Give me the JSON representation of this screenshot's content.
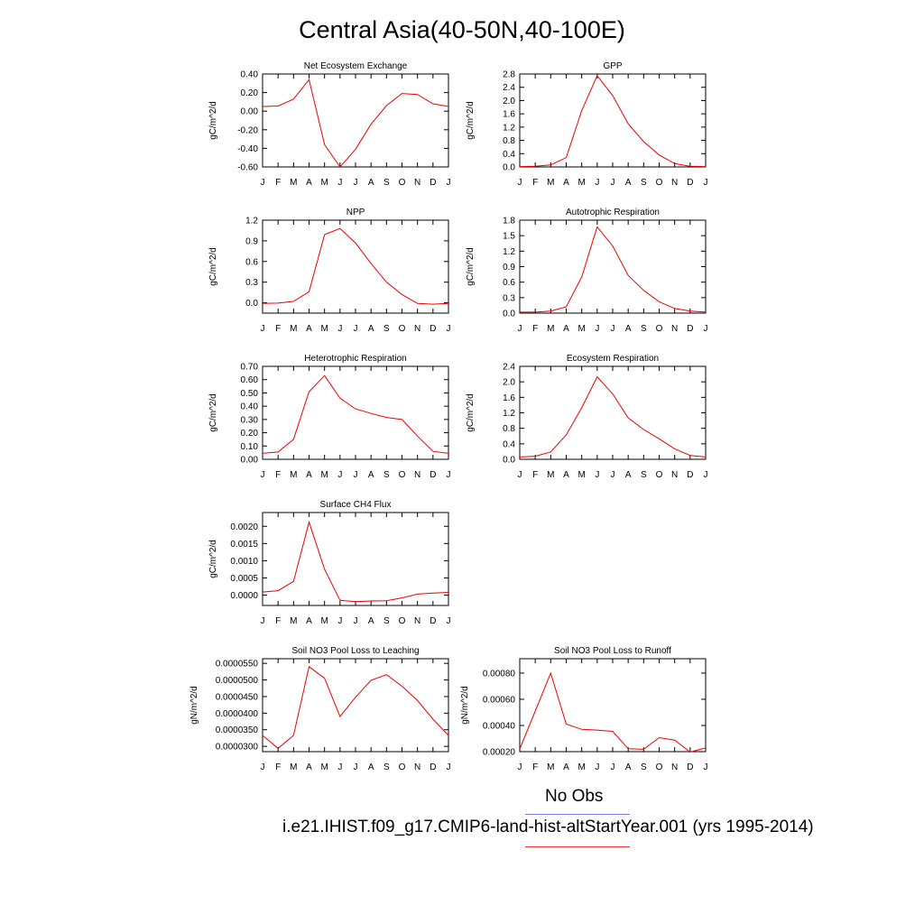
{
  "title": "Central Asia(40-50N,40-100E)",
  "legend": {
    "entries": [
      {
        "label": "No Obs",
        "color": "#7b7bea"
      },
      {
        "label": "i.e21.IHIST.f09_g17.CMIP6-land-hist-altStartYear.001 (yrs 1995-2014)",
        "color": "#ee3333"
      }
    ]
  },
  "chart_data": [
    {
      "type": "line",
      "title": "Net Ecosystem Exchange",
      "ylabel": "gC/m^2/d",
      "categories": [
        "J",
        "F",
        "M",
        "A",
        "M",
        "J",
        "J",
        "A",
        "S",
        "O",
        "N",
        "D",
        "J"
      ],
      "ylim": [
        -0.6,
        0.4
      ],
      "yticks": [
        0.4,
        0.2,
        0.0,
        -0.2,
        -0.4,
        -0.6
      ],
      "ytick_labels": [
        "0.40",
        "0.20",
        "0.00",
        "-0.20",
        "-0.40",
        "-0.60"
      ],
      "series": [
        {
          "color": "#ee0000",
          "values": [
            0.05,
            0.055,
            0.13,
            0.34,
            -0.36,
            -0.6,
            -0.41,
            -0.14,
            0.06,
            0.19,
            0.18,
            0.08,
            0.05
          ]
        }
      ]
    },
    {
      "type": "line",
      "title": "GPP",
      "ylabel": "gC/m^2/d",
      "categories": [
        "J",
        "F",
        "M",
        "A",
        "M",
        "J",
        "J",
        "A",
        "S",
        "O",
        "N",
        "D",
        "J"
      ],
      "ylim": [
        0.0,
        2.8
      ],
      "yticks": [
        2.8,
        2.4,
        2.0,
        1.6,
        1.2,
        0.8,
        0.4,
        0.0
      ],
      "ytick_labels": [
        "2.8",
        "2.4",
        "2.0",
        "1.6",
        "1.2",
        "0.8",
        "0.4",
        "0.0"
      ],
      "series": [
        {
          "color": "#ee0000",
          "values": [
            0.01,
            0.02,
            0.06,
            0.28,
            1.7,
            2.75,
            2.15,
            1.3,
            0.76,
            0.36,
            0.1,
            0.02,
            0.01
          ]
        }
      ]
    },
    {
      "type": "line",
      "title": "NPP",
      "ylabel": "gC/m^2/d",
      "categories": [
        "J",
        "F",
        "M",
        "A",
        "M",
        "J",
        "J",
        "A",
        "S",
        "O",
        "N",
        "D",
        "J"
      ],
      "ylim": [
        -0.15,
        1.2
      ],
      "yticks": [
        1.2,
        0.9,
        0.6,
        0.3,
        0.0
      ],
      "ytick_labels": [
        "1.2",
        "0.9",
        "0.6",
        "0.3",
        "0.0"
      ],
      "series": [
        {
          "color": "#ee0000",
          "values": [
            -0.01,
            -0.005,
            0.02,
            0.16,
            0.99,
            1.08,
            0.87,
            0.57,
            0.3,
            0.12,
            -0.01,
            -0.02,
            -0.01
          ]
        }
      ]
    },
    {
      "type": "line",
      "title": "Autotrophic Respiration",
      "ylabel": "gC/m^2/d",
      "categories": [
        "J",
        "F",
        "M",
        "A",
        "M",
        "J",
        "J",
        "A",
        "S",
        "O",
        "N",
        "D",
        "J"
      ],
      "ylim": [
        0.0,
        1.8
      ],
      "yticks": [
        1.8,
        1.5,
        1.2,
        0.9,
        0.6,
        0.3,
        0.0
      ],
      "ytick_labels": [
        "1.8",
        "1.5",
        "1.2",
        "0.9",
        "0.6",
        "0.3",
        "0.0"
      ],
      "series": [
        {
          "color": "#ee0000",
          "values": [
            0.02,
            0.02,
            0.04,
            0.12,
            0.7,
            1.67,
            1.3,
            0.73,
            0.44,
            0.22,
            0.09,
            0.04,
            0.02
          ]
        }
      ]
    },
    {
      "type": "line",
      "title": "Heterotrophic Respiration",
      "ylabel": "gC/m^2/d",
      "categories": [
        "J",
        "F",
        "M",
        "A",
        "M",
        "J",
        "J",
        "A",
        "S",
        "O",
        "N",
        "D",
        "J"
      ],
      "ylim": [
        0.0,
        0.7
      ],
      "yticks": [
        0.7,
        0.6,
        0.5,
        0.4,
        0.3,
        0.2,
        0.1,
        0.0
      ],
      "ytick_labels": [
        "0.70",
        "0.60",
        "0.50",
        "0.40",
        "0.30",
        "0.20",
        "0.10",
        "0.00"
      ],
      "series": [
        {
          "color": "#ee0000",
          "values": [
            0.045,
            0.055,
            0.15,
            0.51,
            0.63,
            0.46,
            0.38,
            0.345,
            0.315,
            0.3,
            0.175,
            0.06,
            0.045
          ]
        }
      ]
    },
    {
      "type": "line",
      "title": "Ecosystem Respiration",
      "ylabel": "gC/m^2/d",
      "categories": [
        "J",
        "F",
        "M",
        "A",
        "M",
        "J",
        "J",
        "A",
        "S",
        "O",
        "N",
        "D",
        "J"
      ],
      "ylim": [
        0.0,
        2.4
      ],
      "yticks": [
        2.4,
        2.0,
        1.6,
        1.2,
        0.8,
        0.4,
        0.0
      ],
      "ytick_labels": [
        "2.4",
        "2.0",
        "1.6",
        "1.2",
        "0.8",
        "0.4",
        "0.0"
      ],
      "series": [
        {
          "color": "#ee0000",
          "values": [
            0.06,
            0.08,
            0.19,
            0.63,
            1.33,
            2.13,
            1.69,
            1.07,
            0.77,
            0.53,
            0.27,
            0.1,
            0.06
          ]
        }
      ]
    },
    {
      "type": "line",
      "title": "Surface CH4 Flux",
      "ylabel": "gC/m^2/d",
      "categories": [
        "J",
        "F",
        "M",
        "A",
        "M",
        "J",
        "J",
        "A",
        "S",
        "O",
        "N",
        "D",
        "J"
      ],
      "ylim": [
        -0.0003,
        0.0024
      ],
      "yticks": [
        0.002,
        0.0015,
        0.001,
        0.0005,
        0.0
      ],
      "ytick_labels": [
        "0.0020",
        "0.0015",
        "0.0010",
        "0.0005",
        "0.0000"
      ],
      "series": [
        {
          "color": "#ee0000",
          "values": [
            9e-05,
            0.00013,
            0.0004,
            0.00212,
            0.00075,
            -0.00015,
            -0.00019,
            -0.00017,
            -0.00016,
            -8e-05,
            3e-05,
            6e-05,
            8e-05
          ]
        }
      ]
    },
    {
      "type": "line",
      "title": "Soil NO3 Pool Loss to Leaching",
      "ylabel": "gN/m^2/d",
      "categories": [
        "J",
        "F",
        "M",
        "A",
        "M",
        "J",
        "J",
        "A",
        "S",
        "O",
        "N",
        "D",
        "J"
      ],
      "ylim": [
        2.84e-05,
        5.64e-05
      ],
      "yticks": [
        5.5e-05,
        5e-05,
        4.5e-05,
        4e-05,
        3.5e-05,
        3e-05
      ],
      "ytick_labels": [
        "0.0000550",
        "0.0000500",
        "0.0000450",
        "0.0000400",
        "0.0000350",
        "0.0000300"
      ],
      "series": [
        {
          "color": "#ee0000",
          "values": [
            3.33e-05,
            2.94e-05,
            3.33e-05,
            5.4e-05,
            5.05e-05,
            3.9e-05,
            4.48e-05,
            4.99e-05,
            5.16e-05,
            4.81e-05,
            4.38e-05,
            3.82e-05,
            3.33e-05
          ]
        }
      ]
    },
    {
      "type": "line",
      "title": "Soil NO3 Pool Loss to Runoff",
      "ylabel": "gN/m^2/d",
      "categories": [
        "J",
        "F",
        "M",
        "A",
        "M",
        "J",
        "J",
        "A",
        "S",
        "O",
        "N",
        "D",
        "J"
      ],
      "ylim": [
        0.0002,
        0.00091
      ],
      "yticks": [
        0.0008,
        0.0006,
        0.0004,
        0.0002
      ],
      "ytick_labels": [
        "0.00080",
        "0.00060",
        "0.00040",
        "0.00020"
      ],
      "series": [
        {
          "color": "#ee0000",
          "values": [
            0.00022,
            0.00051,
            0.0008,
            0.00041,
            0.00037,
            0.000365,
            0.000355,
            0.000222,
            0.000218,
            0.000307,
            0.000288,
            0.000197,
            0.000228
          ]
        }
      ]
    }
  ]
}
